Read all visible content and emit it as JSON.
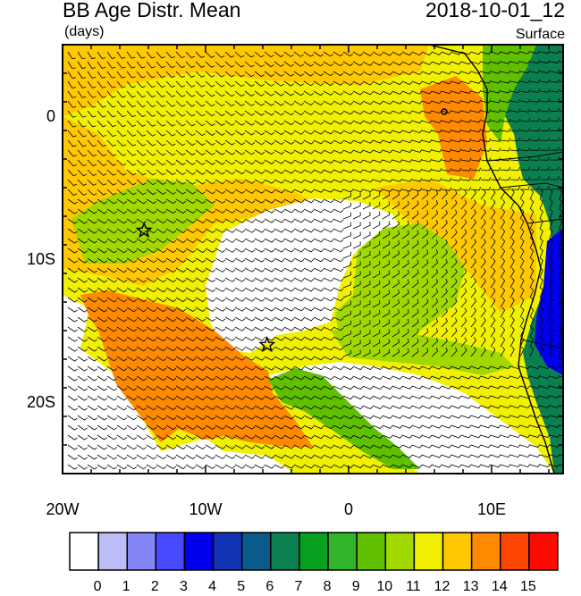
{
  "header": {
    "title": "BB Age Distr. Mean",
    "units": "(days)",
    "datetime": "2018-10-01_12",
    "level": "Surface"
  },
  "axes": {
    "lon_ticks": [
      "20W",
      "10W",
      "0",
      "10E"
    ],
    "lat_ticks": [
      "0",
      "10S",
      "20S"
    ],
    "lon_range": [
      -20,
      15
    ],
    "lat_range": [
      -25,
      5
    ]
  },
  "colorbar": {
    "labels": [
      "0",
      "1",
      "2",
      "3",
      "4",
      "5",
      "6",
      "7",
      "8",
      "9",
      "10",
      "11",
      "12",
      "13",
      "14",
      "15"
    ],
    "colors": [
      "#ffffff",
      "#bcbcf7",
      "#8585f5",
      "#4848ff",
      "#0000ee",
      "#1234b4",
      "#0b5a8c",
      "#0a8050",
      "#08a020",
      "#30b428",
      "#60c000",
      "#a0d800",
      "#f0f000",
      "#ffc800",
      "#ff8a00",
      "#ff4600",
      "#ff0a00"
    ]
  },
  "markers": [
    {
      "name": "star-marker-1",
      "lon": -14.3,
      "lat": -8.0
    },
    {
      "name": "star-marker-2",
      "lon": -5.7,
      "lat": -16.0
    }
  ]
}
